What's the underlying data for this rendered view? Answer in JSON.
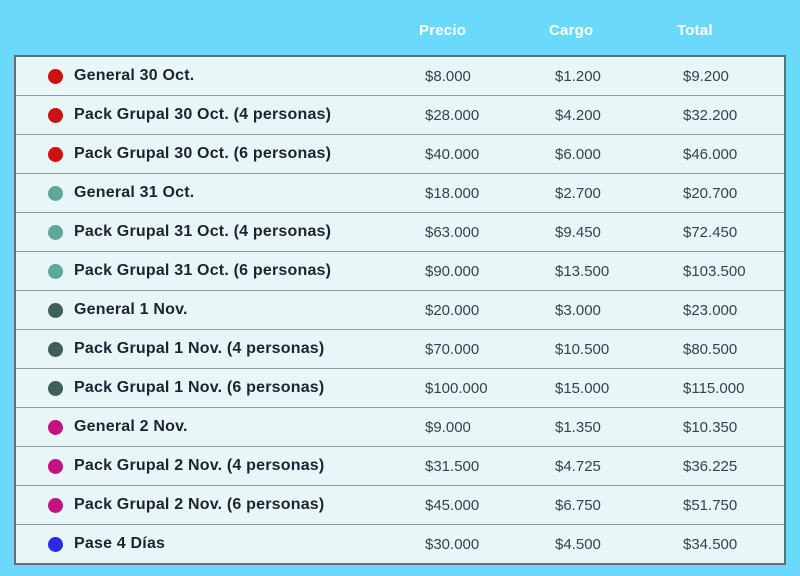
{
  "page": {
    "background_color": "#6BD9FB",
    "table_background_color": "#E9F6F8"
  },
  "chart_data": {
    "type": "table",
    "columns": [
      "",
      "Precio",
      "Cargo",
      "Total"
    ],
    "legend_note": "colored dot per ticket group",
    "rows": [
      {
        "name": "General 30 Oct.",
        "dot_color": "#CE1111",
        "precio": "$8.000",
        "cargo": "$1.200",
        "total": "$9.200"
      },
      {
        "name": "Pack Grupal 30 Oct. (4 personas)",
        "dot_color": "#CE1111",
        "precio": "$28.000",
        "cargo": "$4.200",
        "total": "$32.200"
      },
      {
        "name": "Pack Grupal 30 Oct. (6 personas)",
        "dot_color": "#CE1111",
        "precio": "$40.000",
        "cargo": "$6.000",
        "total": "$46.000"
      },
      {
        "name": "General 31 Oct.",
        "dot_color": "#5EA89A",
        "precio": "$18.000",
        "cargo": "$2.700",
        "total": "$20.700"
      },
      {
        "name": "Pack Grupal 31 Oct. (4 personas)",
        "dot_color": "#5EA89A",
        "precio": "$63.000",
        "cargo": "$9.450",
        "total": "$72.450"
      },
      {
        "name": "Pack Grupal 31 Oct. (6 personas)",
        "dot_color": "#5EA89A",
        "precio": "$90.000",
        "cargo": "$13.500",
        "total": "$103.500"
      },
      {
        "name": "General 1 Nov.",
        "dot_color": "#3F5F58",
        "precio": "$20.000",
        "cargo": "$3.000",
        "total": "$23.000"
      },
      {
        "name": "Pack Grupal 1 Nov. (4 personas)",
        "dot_color": "#3F5F58",
        "precio": "$70.000",
        "cargo": "$10.500",
        "total": "$80.500"
      },
      {
        "name": "Pack Grupal 1 Nov. (6 personas)",
        "dot_color": "#3F5F58",
        "precio": "$100.000",
        "cargo": "$15.000",
        "total": "$115.000"
      },
      {
        "name": "General 2 Nov.",
        "dot_color": "#C21380",
        "precio": "$9.000",
        "cargo": "$1.350",
        "total": "$10.350"
      },
      {
        "name": "Pack Grupal 2 Nov. (4 personas)",
        "dot_color": "#C21380",
        "precio": "$31.500",
        "cargo": "$4.725",
        "total": "$36.225"
      },
      {
        "name": "Pack Grupal 2 Nov. (6 personas)",
        "dot_color": "#C21380",
        "precio": "$45.000",
        "cargo": "$6.750",
        "total": "$51.750"
      },
      {
        "name": "Pase 4 Días",
        "dot_color": "#2A2BE2",
        "precio": "$30.000",
        "cargo": "$4.500",
        "total": "$34.500"
      }
    ]
  }
}
